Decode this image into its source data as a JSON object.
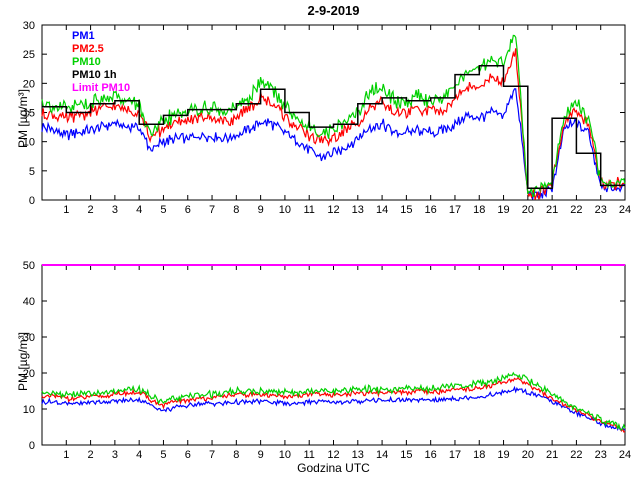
{
  "figure": {
    "background": "#ffffff",
    "axis_color": "#000000"
  },
  "chart_data": [
    {
      "type": "line",
      "title": "2-9-2019",
      "ylabel": "PM [µg/m³]",
      "xlabel": "",
      "xlim": [
        0,
        24
      ],
      "ylim": [
        0,
        30
      ],
      "xticks": [
        1,
        2,
        3,
        4,
        5,
        6,
        7,
        8,
        9,
        10,
        11,
        12,
        13,
        14,
        15,
        16,
        17,
        18,
        19,
        20,
        21,
        22,
        23,
        24
      ],
      "yticks": [
        0,
        5,
        10,
        15,
        20,
        25,
        30
      ],
      "x_step_hours": 0.5,
      "grid": false,
      "legend_position": "top-left-inside",
      "series": [
        {
          "name": "PM1",
          "color": "#0000ff",
          "style": "noisy",
          "noise": 0.7,
          "values": [
            12.5,
            12,
            11,
            11.5,
            12,
            12.5,
            13,
            12.5,
            12.5,
            8.5,
            10,
            10.5,
            10.5,
            11,
            11,
            10.5,
            11,
            12,
            13.5,
            13,
            11.5,
            10,
            8.5,
            7.5,
            8,
            9,
            10.5,
            12.5,
            13,
            11.5,
            11.5,
            12,
            11.5,
            12,
            13,
            14.5,
            14,
            15,
            14.5,
            19.5,
            1,
            1,
            2,
            12,
            13.5,
            11.5,
            2.5,
            2,
            2.5
          ]
        },
        {
          "name": "PM2.5",
          "color": "#ff0000",
          "style": "noisy",
          "noise": 0.8,
          "values": [
            15,
            14.5,
            14,
            14.5,
            15,
            15.5,
            16,
            15.5,
            15,
            10.5,
            12.5,
            13,
            13.5,
            14,
            14,
            13.5,
            14,
            15.5,
            17.5,
            16.5,
            14.5,
            12.5,
            11,
            10,
            10.5,
            12,
            13.5,
            16,
            16.5,
            15,
            15,
            15.5,
            15,
            15.5,
            17,
            19.5,
            19,
            21,
            20,
            25.5,
            1.2,
            1.2,
            2.5,
            13.5,
            15.5,
            13,
            3,
            2.5,
            3
          ]
        },
        {
          "name": "PM10",
          "color": "#00d000",
          "style": "noisy",
          "noise": 1.0,
          "values": [
            17,
            16,
            15.5,
            16,
            16.5,
            17.5,
            18,
            17,
            16.5,
            11,
            13.5,
            14.5,
            15,
            15.5,
            16,
            15,
            15.5,
            17,
            20.5,
            19,
            16,
            14,
            12.5,
            11.5,
            12,
            13.5,
            15,
            18.5,
            19,
            17,
            17,
            18,
            17,
            17.5,
            19,
            22.5,
            22,
            24.5,
            23.5,
            29,
            1.5,
            1.5,
            3,
            14.5,
            16.5,
            14,
            3.5,
            3,
            3.5
          ]
        },
        {
          "name": "PM10 1h",
          "color": "#000000",
          "style": "step",
          "values": [
            16,
            15,
            16.5,
            17,
            13,
            14.5,
            15.5,
            15.5,
            16.5,
            19,
            15,
            12.5,
            13,
            16.5,
            17.5,
            17,
            17.5,
            21.5,
            23,
            19.5,
            2,
            14,
            8,
            2.5
          ]
        },
        {
          "name": "Limit PM10",
          "color": "#ff00ff",
          "style": "hline",
          "value": 50
        }
      ]
    },
    {
      "type": "line",
      "title": "",
      "ylabel": "PM [µg/m³]",
      "xlabel": "Godzina UTC",
      "xlim": [
        0,
        24
      ],
      "ylim": [
        0,
        50
      ],
      "xticks": [
        1,
        2,
        3,
        4,
        5,
        6,
        7,
        8,
        9,
        10,
        11,
        12,
        13,
        14,
        15,
        16,
        17,
        18,
        19,
        20,
        21,
        22,
        23,
        24
      ],
      "yticks": [
        0,
        10,
        20,
        30,
        40,
        50
      ],
      "x_step_hours": 0.5,
      "grid": false,
      "series": [
        {
          "name": "PM1",
          "color": "#0000ff",
          "style": "noisy",
          "noise": 0.5,
          "values": [
            12,
            12,
            11.5,
            11.5,
            12,
            12,
            12,
            12.5,
            12.5,
            11,
            9.5,
            10.5,
            11,
            11.5,
            11.5,
            11.5,
            12,
            12,
            12,
            12,
            11.5,
            11.5,
            12,
            12,
            12,
            12,
            12,
            12.5,
            12.5,
            12.5,
            12.5,
            12.5,
            12.5,
            12.5,
            13,
            13,
            13.5,
            14,
            14.5,
            15.5,
            14.5,
            13.5,
            12,
            10.5,
            9,
            7.5,
            6,
            5,
            4
          ]
        },
        {
          "name": "PM2.5",
          "color": "#ff0000",
          "style": "noisy",
          "noise": 0.55,
          "values": [
            13.5,
            13.5,
            13,
            13,
            13.5,
            13.5,
            14,
            14.5,
            14.5,
            12.5,
            11,
            12,
            12.5,
            13,
            13,
            13.5,
            14,
            14,
            14,
            14,
            13.5,
            13.5,
            14,
            14,
            14,
            14,
            14.5,
            14.5,
            14.5,
            14.5,
            14.5,
            15,
            14.5,
            15,
            15.5,
            15.5,
            16,
            16.5,
            17.5,
            18.5,
            17,
            15,
            13,
            11.5,
            9.5,
            8,
            6.5,
            5.5,
            4
          ]
        },
        {
          "name": "PM10",
          "color": "#00d000",
          "style": "noisy",
          "noise": 0.7,
          "values": [
            14.5,
            14.5,
            14,
            14,
            14.5,
            14.5,
            15,
            15.5,
            15.5,
            13.5,
            12,
            13,
            13.5,
            14,
            14,
            14.5,
            15,
            15,
            15,
            15,
            14.5,
            14.5,
            15,
            15,
            15,
            15,
            15.5,
            15.5,
            15.5,
            15.5,
            15.5,
            16,
            15.5,
            16,
            16.5,
            16.5,
            17,
            17.5,
            18.5,
            19.5,
            18,
            16,
            14,
            12,
            10,
            8.5,
            7,
            6,
            4.5
          ]
        },
        {
          "name": "Limit PM10",
          "color": "#ff00ff",
          "style": "hline",
          "value": 50
        }
      ]
    }
  ]
}
